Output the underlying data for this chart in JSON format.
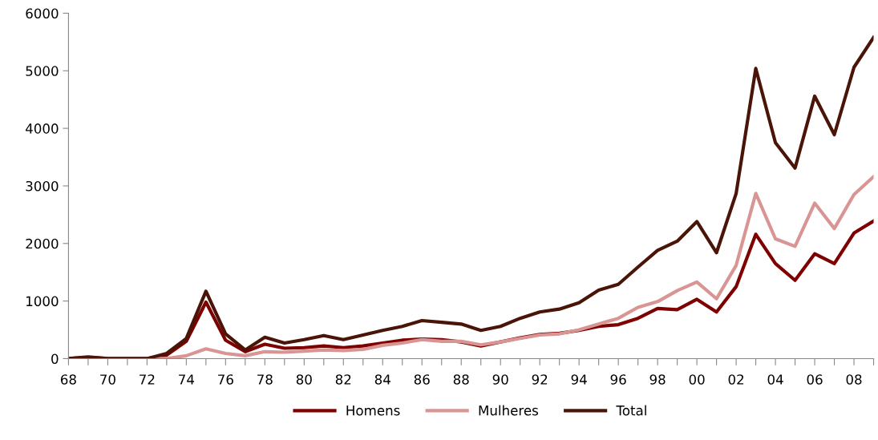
{
  "chart_data": {
    "type": "line",
    "categories": [
      "68",
      null,
      "70",
      null,
      "72",
      null,
      "74",
      null,
      "76",
      null,
      "78",
      null,
      "80",
      null,
      "82",
      null,
      "84",
      null,
      "86",
      null,
      "88",
      null,
      "90",
      null,
      "92",
      null,
      "94",
      null,
      "96",
      null,
      "98",
      null,
      "00",
      null,
      "02",
      null,
      "04",
      null,
      "06",
      null,
      "08",
      null
    ],
    "series": [
      {
        "name": "Homens",
        "color": "#7f0000",
        "values": [
          0,
          20,
          0,
          0,
          0,
          60,
          300,
          980,
          320,
          120,
          250,
          180,
          190,
          220,
          190,
          220,
          270,
          320,
          340,
          330,
          290,
          220,
          290,
          360,
          420,
          440,
          490,
          560,
          590,
          700,
          870,
          850,
          1030,
          810,
          1250,
          2160,
          1650,
          1360,
          1820,
          1650,
          2180,
          2390
        ]
      },
      {
        "name": "Mulheres",
        "color": "#d99594",
        "values": [
          0,
          0,
          0,
          0,
          0,
          0,
          50,
          170,
          90,
          50,
          120,
          110,
          130,
          150,
          140,
          160,
          230,
          270,
          330,
          300,
          300,
          240,
          290,
          350,
          410,
          430,
          500,
          600,
          700,
          890,
          990,
          1180,
          1330,
          1040,
          1620,
          2870,
          2080,
          1950,
          2700,
          2260,
          2850,
          3160
        ]
      },
      {
        "name": "Total",
        "color": "#4a1408",
        "values": [
          0,
          30,
          0,
          0,
          0,
          90,
          350,
          1170,
          430,
          150,
          370,
          270,
          330,
          400,
          330,
          410,
          490,
          560,
          660,
          630,
          600,
          490,
          560,
          700,
          810,
          860,
          970,
          1190,
          1290,
          1590,
          1880,
          2040,
          2380,
          1840,
          2870,
          5040,
          3750,
          3310,
          4560,
          3890,
          5060,
          5580
        ]
      }
    ],
    "ylim": [
      0,
      6000
    ],
    "yticks": [
      0,
      1000,
      2000,
      3000,
      4000,
      5000,
      6000
    ],
    "grid": false,
    "legend": "bottom",
    "marker": "none",
    "line_style": "solid"
  }
}
